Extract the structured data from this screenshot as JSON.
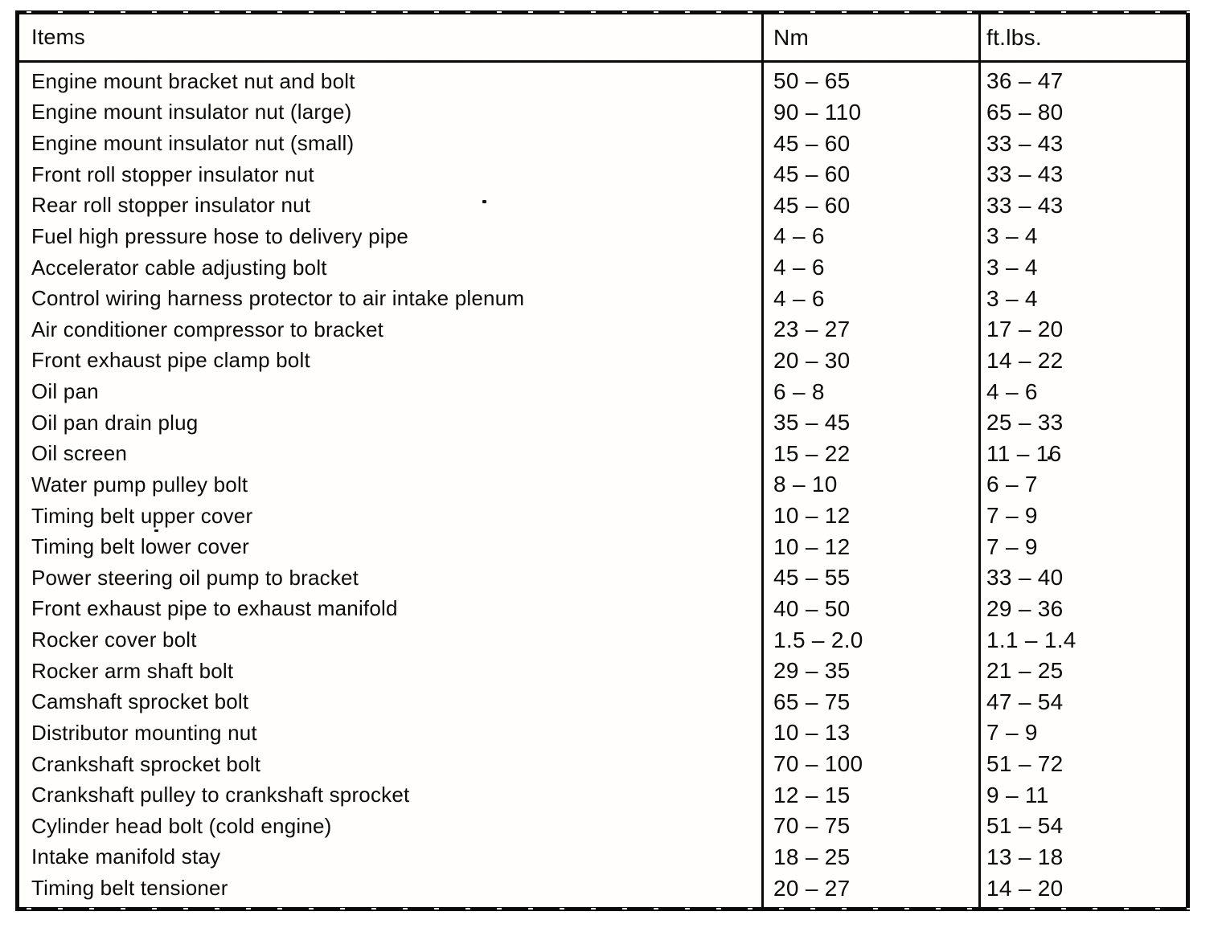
{
  "table": {
    "columns": [
      "Items",
      "Nm",
      "ft.lbs."
    ],
    "rows": [
      {
        "item": "Engine mount bracket nut and bolt",
        "nm": "50 – 65",
        "ftlbs": "36 – 47"
      },
      {
        "item": "Engine mount insulator nut (large)",
        "nm": "90 – 110",
        "ftlbs": "65 – 80"
      },
      {
        "item": "Engine mount insulator nut (small)",
        "nm": "45 – 60",
        "ftlbs": "33 – 43"
      },
      {
        "item": "Front roll stopper insulator nut",
        "nm": "45 – 60",
        "ftlbs": "33 – 43"
      },
      {
        "item": "Rear roll stopper insulator nut",
        "nm": "45 – 60",
        "ftlbs": "33 – 43"
      },
      {
        "item": "Fuel high pressure hose to delivery pipe",
        "nm": "4 – 6",
        "ftlbs": "3 – 4"
      },
      {
        "item": "Accelerator cable adjusting bolt",
        "nm": "4 – 6",
        "ftlbs": "3 – 4"
      },
      {
        "item": "Control wiring harness protector to air intake plenum",
        "nm": "4 – 6",
        "ftlbs": "3 – 4"
      },
      {
        "item": "Air conditioner compressor to bracket",
        "nm": "23 – 27",
        "ftlbs": "17 – 20"
      },
      {
        "item": "Front exhaust pipe clamp bolt",
        "nm": "20 – 30",
        "ftlbs": "14 – 22"
      },
      {
        "item": "Oil pan",
        "nm": "6 – 8",
        "ftlbs": "4 – 6"
      },
      {
        "item": "Oil pan drain plug",
        "nm": "35 – 45",
        "ftlbs": "25 – 33"
      },
      {
        "item": "Oil screen",
        "nm": "15 – 22",
        "ftlbs": "11 – 16"
      },
      {
        "item": "Water pump pulley bolt",
        "nm": "8 – 10",
        "ftlbs": "6 – 7"
      },
      {
        "item": "Timing belt upper cover",
        "nm": "10 – 12",
        "ftlbs": "7 – 9"
      },
      {
        "item": "Timing belt lower cover",
        "nm": "10 – 12",
        "ftlbs": "7 – 9"
      },
      {
        "item": "Power steering oil pump to bracket",
        "nm": "45 – 55",
        "ftlbs": "33 – 40"
      },
      {
        "item": "Front exhaust pipe to exhaust manifold",
        "nm": "40 – 50",
        "ftlbs": "29 – 36"
      },
      {
        "item": "Rocker cover bolt",
        "nm": "1.5 – 2.0",
        "ftlbs": "1.1 – 1.4"
      },
      {
        "item": "Rocker arm shaft bolt",
        "nm": "29 – 35",
        "ftlbs": "21 – 25"
      },
      {
        "item": "Camshaft sprocket bolt",
        "nm": "65 – 75",
        "ftlbs": "47 – 54"
      },
      {
        "item": "Distributor mounting nut",
        "nm": "10 – 13",
        "ftlbs": "7 – 9"
      },
      {
        "item": "Crankshaft sprocket bolt",
        "nm": "70 – 100",
        "ftlbs": "51 – 72"
      },
      {
        "item": "Crankshaft pulley to crankshaft sprocket",
        "nm": "12 – 15",
        "ftlbs": "9 – 11"
      },
      {
        "item": "Cylinder head bolt (cold engine)",
        "nm": "70 – 75",
        "ftlbs": "51 – 54"
      },
      {
        "item": "Intake manifold stay",
        "nm": "18 – 25",
        "ftlbs": "13 – 18"
      },
      {
        "item": "Timing belt tensioner",
        "nm": "20 – 27",
        "ftlbs": "14 – 20"
      }
    ]
  }
}
